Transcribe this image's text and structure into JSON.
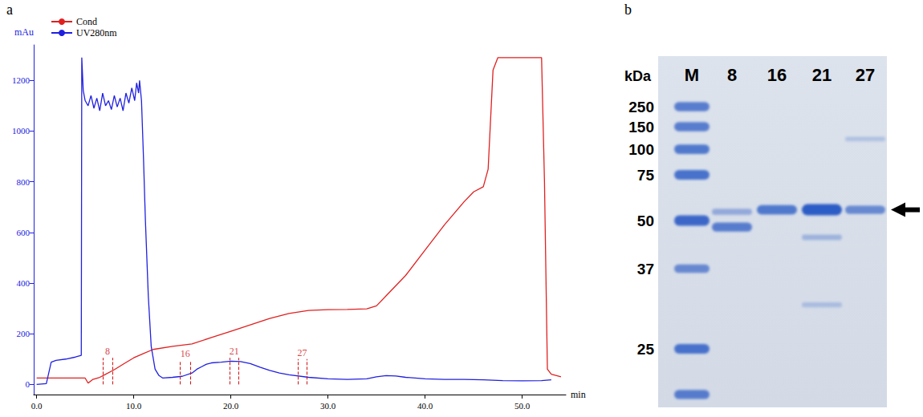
{
  "chart_data": {
    "type": "line",
    "panel": "a",
    "x_label": "min",
    "y_label": "mAu",
    "xlim": [
      -0.3,
      54.5
    ],
    "xticks": [
      {
        "value": 0,
        "label": "0.0"
      },
      {
        "value": 10,
        "label": "10.0"
      },
      {
        "value": 20,
        "label": "20.0"
      },
      {
        "value": 30,
        "label": "30.0"
      },
      {
        "value": 40,
        "label": "40.0"
      },
      {
        "value": 50,
        "label": "50.0"
      }
    ],
    "ylim": [
      -40,
      1340
    ],
    "yticks": [
      0,
      200,
      400,
      600,
      800,
      1000,
      1200
    ],
    "grid": false,
    "legend": "upper left",
    "series": [
      {
        "name": "Cond",
        "color": "#e02020",
        "x": [
          0,
          4,
          5,
          5.3,
          5.8,
          6.5,
          7,
          8,
          9,
          10,
          11,
          12,
          14,
          16,
          18,
          20,
          22,
          24,
          26,
          28,
          30,
          32,
          34,
          35,
          36,
          38,
          40,
          42,
          44,
          45,
          46,
          46.5,
          47,
          47.5,
          52,
          52.3,
          52.6,
          53,
          54
        ],
        "values": [
          25,
          25,
          25,
          5,
          20,
          28,
          38,
          58,
          82,
          105,
          122,
          138,
          150,
          160,
          185,
          210,
          235,
          260,
          280,
          292,
          295,
          296,
          298,
          310,
          350,
          430,
          530,
          630,
          720,
          760,
          780,
          850,
          1240,
          1290,
          1290,
          800,
          60,
          40,
          30
        ]
      },
      {
        "name": "UV280nm",
        "color": "#2020e0",
        "x": [
          0,
          1,
          1.5,
          2,
          3,
          4,
          4.6,
          4.65,
          4.8,
          5.0,
          5.3,
          5.6,
          5.9,
          6.2,
          6.5,
          6.8,
          7.1,
          7.4,
          7.7,
          8.0,
          8.3,
          8.6,
          8.9,
          9.2,
          9.5,
          9.8,
          10.1,
          10.3,
          10.5,
          10.6,
          10.8,
          11.0,
          11.2,
          11.5,
          11.8,
          12.2,
          12.6,
          13,
          14,
          15,
          16,
          16.5,
          17,
          17.5,
          18,
          19,
          20,
          21,
          22,
          23,
          24,
          25,
          26,
          28,
          30,
          32,
          34,
          35,
          36,
          37,
          38,
          40,
          42,
          44,
          46,
          48,
          50,
          52,
          53
        ],
        "values": [
          0,
          3,
          88,
          95,
          100,
          108,
          115,
          1290,
          1160,
          1120,
          1100,
          1140,
          1090,
          1130,
          1080,
          1150,
          1100,
          1120,
          1085,
          1140,
          1095,
          1130,
          1080,
          1150,
          1110,
          1170,
          1120,
          1190,
          1150,
          1200,
          1120,
          900,
          650,
          350,
          150,
          60,
          35,
          25,
          28,
          32,
          45,
          60,
          70,
          80,
          85,
          88,
          92,
          90,
          82,
          68,
          55,
          45,
          38,
          28,
          22,
          20,
          22,
          30,
          35,
          33,
          28,
          22,
          20,
          20,
          18,
          15,
          14,
          15,
          18
        ]
      }
    ],
    "fractions": [
      {
        "label": "8",
        "start": 6.8,
        "end": 7.8,
        "top": 105
      },
      {
        "label": "16",
        "start": 14.8,
        "end": 15.8,
        "top": 95
      },
      {
        "label": "21",
        "start": 19.9,
        "end": 20.8,
        "top": 105
      },
      {
        "label": "27",
        "start": 26.9,
        "end": 27.8,
        "top": 100
      }
    ]
  },
  "gel": {
    "panel": "b",
    "y_label": "kDa",
    "lanes": [
      "M",
      "8",
      "16",
      "21",
      "27"
    ],
    "markers": [
      250,
      150,
      100,
      75,
      50,
      37,
      25
    ],
    "bands": [
      {
        "lane": "M",
        "kda": 250,
        "intensity": 0.7
      },
      {
        "lane": "M",
        "kda": 150,
        "intensity": 0.7
      },
      {
        "lane": "M",
        "kda": 100,
        "intensity": 0.75
      },
      {
        "lane": "M",
        "kda": 75,
        "intensity": 0.8
      },
      {
        "lane": "M",
        "kda": 50,
        "intensity": 0.9
      },
      {
        "lane": "M",
        "kda": 37,
        "intensity": 0.6
      },
      {
        "lane": "M",
        "kda": 25,
        "intensity": 0.8
      },
      {
        "lane": "M",
        "kda": 20,
        "intensity": 0.7
      },
      {
        "lane": "8",
        "kda": 54,
        "intensity": 0.3
      },
      {
        "lane": "8",
        "kda": 48,
        "intensity": 0.7
      },
      {
        "lane": "16",
        "kda": 55,
        "intensity": 0.75
      },
      {
        "lane": "21",
        "kda": 55,
        "intensity": 1.0
      },
      {
        "lane": "21",
        "kda": 45,
        "intensity": 0.2
      },
      {
        "lane": "21",
        "kda": 31,
        "intensity": 0.12
      },
      {
        "lane": "27",
        "kda": 55,
        "intensity": 0.6
      },
      {
        "lane": "27",
        "kda": 120,
        "intensity": 0.1
      }
    ],
    "arrow_kda": 55
  }
}
